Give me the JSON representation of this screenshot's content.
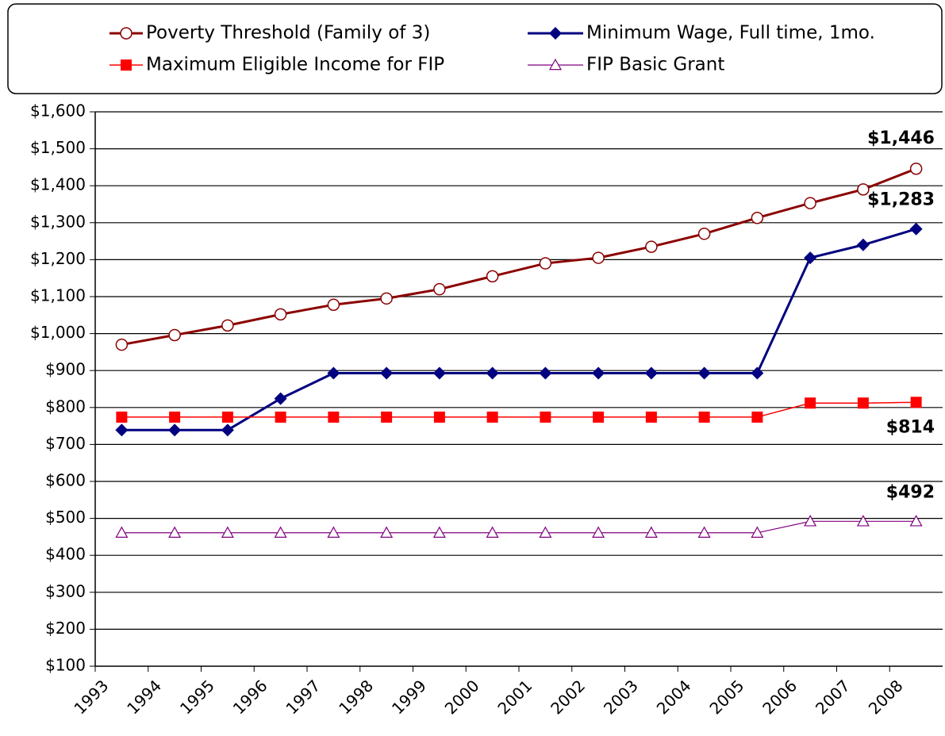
{
  "chart_data": {
    "type": "line",
    "categories": [
      "1993",
      "1994",
      "1995",
      "1996",
      "1997",
      "1998",
      "1999",
      "2000",
      "2001",
      "2002",
      "2003",
      "2004",
      "2005",
      "2006",
      "2007",
      "2008"
    ],
    "series": [
      {
        "name": "Poverty Threshold (Family of 3)",
        "color": "#8b0000",
        "marker": "circle",
        "values": [
          970,
          996,
          1022,
          1052,
          1078,
          1095,
          1120,
          1155,
          1190,
          1205,
          1235,
          1270,
          1313,
          1353,
          1390,
          1446
        ],
        "value_labels": [
          null,
          null,
          null,
          null,
          null,
          null,
          null,
          null,
          null,
          null,
          null,
          null,
          null,
          null,
          null,
          "$1,446"
        ]
      },
      {
        "name": "Minimum Wage, Full time, 1mo.",
        "color": "#000080",
        "marker": "diamond",
        "values": [
          739,
          739,
          739,
          824,
          893,
          893,
          893,
          893,
          893,
          893,
          893,
          893,
          893,
          1205,
          1240,
          1283
        ],
        "value_labels": [
          null,
          null,
          null,
          null,
          null,
          null,
          null,
          null,
          null,
          null,
          null,
          null,
          null,
          null,
          null,
          "$1,283"
        ]
      },
      {
        "name": "Maximum Eligible Income for FIP",
        "color": "#ff0000",
        "marker": "square",
        "values": [
          774,
          774,
          774,
          774,
          774,
          774,
          774,
          774,
          774,
          774,
          774,
          774,
          774,
          812,
          812,
          814
        ],
        "value_labels": [
          null,
          null,
          null,
          null,
          null,
          null,
          null,
          null,
          null,
          null,
          null,
          null,
          null,
          null,
          null,
          "$814"
        ]
      },
      {
        "name": "FIP Basic Grant",
        "color": "#800080",
        "marker": "triangle",
        "values": [
          461,
          461,
          461,
          461,
          461,
          461,
          461,
          461,
          461,
          461,
          461,
          461,
          461,
          492,
          492,
          492
        ],
        "value_labels": [
          null,
          null,
          null,
          null,
          null,
          null,
          null,
          null,
          null,
          null,
          null,
          null,
          null,
          null,
          null,
          "$492"
        ]
      }
    ],
    "ylim": [
      100,
      1600
    ],
    "yticks": [
      {
        "value": 100,
        "label": "$100"
      },
      {
        "value": 200,
        "label": "$200"
      },
      {
        "value": 300,
        "label": "$300"
      },
      {
        "value": 400,
        "label": "$400"
      },
      {
        "value": 500,
        "label": "$500"
      },
      {
        "value": 600,
        "label": "$600"
      },
      {
        "value": 700,
        "label": "$700"
      },
      {
        "value": 800,
        "label": "$800"
      },
      {
        "value": 900,
        "label": "$900"
      },
      {
        "value": 1000,
        "label": "$1,000"
      },
      {
        "value": 1100,
        "label": "$1,100"
      },
      {
        "value": 1200,
        "label": "$1,200"
      },
      {
        "value": 1300,
        "label": "$1,300"
      },
      {
        "value": 1400,
        "label": "$1,400"
      },
      {
        "value": 1500,
        "label": "$1,500"
      },
      {
        "value": 1600,
        "label": "$1,600"
      }
    ],
    "grid": true
  }
}
